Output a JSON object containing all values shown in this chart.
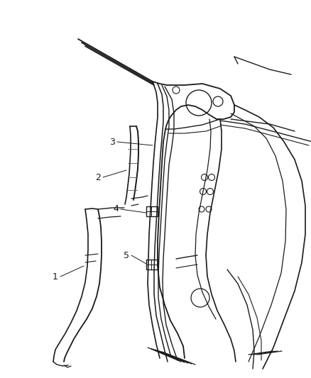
{
  "bg_color": "#ffffff",
  "line_color": "#1a1a1a",
  "fig_width": 4.38,
  "fig_height": 5.33,
  "dpi": 100,
  "label_fontsize": 9,
  "label_color": "#1a1a1a"
}
